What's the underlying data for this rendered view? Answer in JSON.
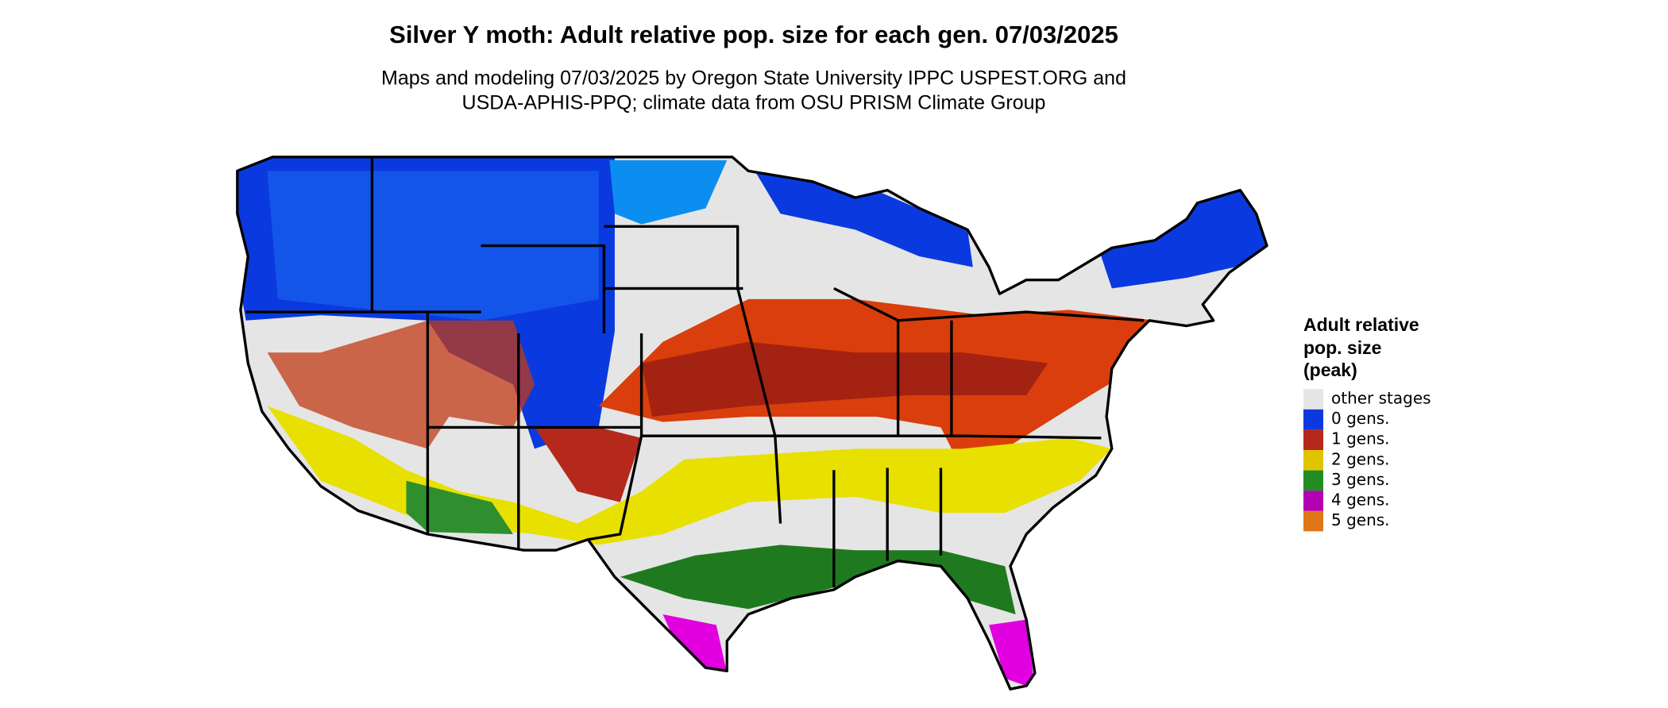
{
  "title": "Silver Y moth: Adult relative pop. size for each gen. 07/03/2025",
  "subtitle": [
    "Maps and modeling 07/03/2025 by Oregon State University IPPC USPEST.ORG and",
    "USDA-APHIS-PPQ; climate data from OSU PRISM Climate Group"
  ],
  "legend": {
    "title": [
      "Adult relative",
      "pop. size",
      "(peak)"
    ],
    "items": [
      {
        "label": "other stages",
        "color": "#e5e5e5"
      },
      {
        "label": "0 gens.",
        "color": "#0a3adf"
      },
      {
        "label": "1 gens.",
        "color": "#b5281c"
      },
      {
        "label": "2 gens.",
        "color": "#e0c400"
      },
      {
        "label": "3 gens.",
        "color": "#228b22"
      },
      {
        "label": "4 gens.",
        "color": "#b300b3"
      },
      {
        "label": "5 gens.",
        "color": "#e0761a"
      }
    ]
  }
}
